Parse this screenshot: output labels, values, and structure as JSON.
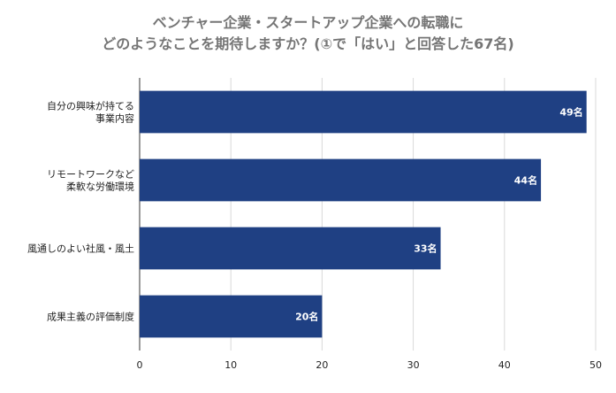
{
  "chart_data": {
    "type": "bar",
    "orientation": "horizontal",
    "title_line1": "ベンチャー企業・スタートアップ企業への転職に",
    "title_line2": "どのようなことを期待しますか？(①で「はい」と回答した67名)",
    "categories": [
      [
        "自分の興味が持てる",
        "事業内容"
      ],
      [
        "リモートワークなど",
        "柔軟な労働環境"
      ],
      [
        "風通しのよい社風・風土"
      ],
      [
        "成果主義の評価制度"
      ]
    ],
    "values": [
      49,
      44,
      33,
      20
    ],
    "data_labels": [
      "49名",
      "44名",
      "33名",
      "20名"
    ],
    "xlim": [
      0,
      50
    ],
    "xticks": [
      "0",
      "10",
      "20",
      "30",
      "40",
      "50"
    ],
    "grid": true,
    "legend": "none",
    "bar_color": "#1f4083"
  }
}
